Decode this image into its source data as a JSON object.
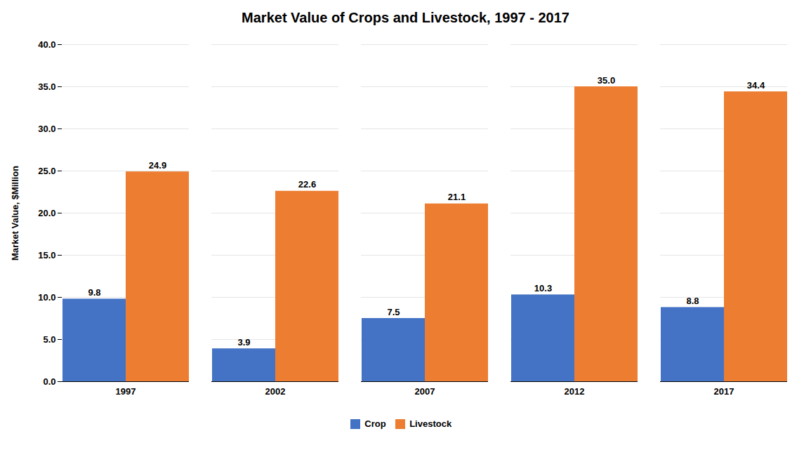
{
  "chart_data": {
    "type": "bar",
    "title": "Market Value of Crops and Livestock, 1997 - 2017",
    "ylabel": "Market Value, $Million",
    "categories": [
      "1997",
      "2002",
      "2007",
      "2012",
      "2017"
    ],
    "series": [
      {
        "name": "Crop",
        "color": "#4472C4",
        "values": [
          9.8,
          3.9,
          7.5,
          10.3,
          8.8
        ]
      },
      {
        "name": "Livestock",
        "color": "#ED7D31",
        "values": [
          24.9,
          22.6,
          21.1,
          35.0,
          34.4
        ],
        "value_labels": [
          "24.9",
          "22.6",
          "21.1",
          "35.0",
          "34.4"
        ]
      }
    ],
    "ylim": [
      0,
      40
    ],
    "yticks": [
      {
        "value": 0,
        "label": "0.0"
      },
      {
        "value": 5,
        "label": "5.0"
      },
      {
        "value": 10,
        "label": "10.0"
      },
      {
        "value": 15,
        "label": "15.0"
      },
      {
        "value": 20,
        "label": "20.0"
      },
      {
        "value": 25,
        "label": "25.0"
      },
      {
        "value": 30,
        "label": "30.0"
      },
      {
        "value": 35,
        "label": "35.0"
      },
      {
        "value": 40,
        "label": "40.0"
      }
    ],
    "grid": true,
    "legend": "bottom",
    "data_labels": true
  }
}
